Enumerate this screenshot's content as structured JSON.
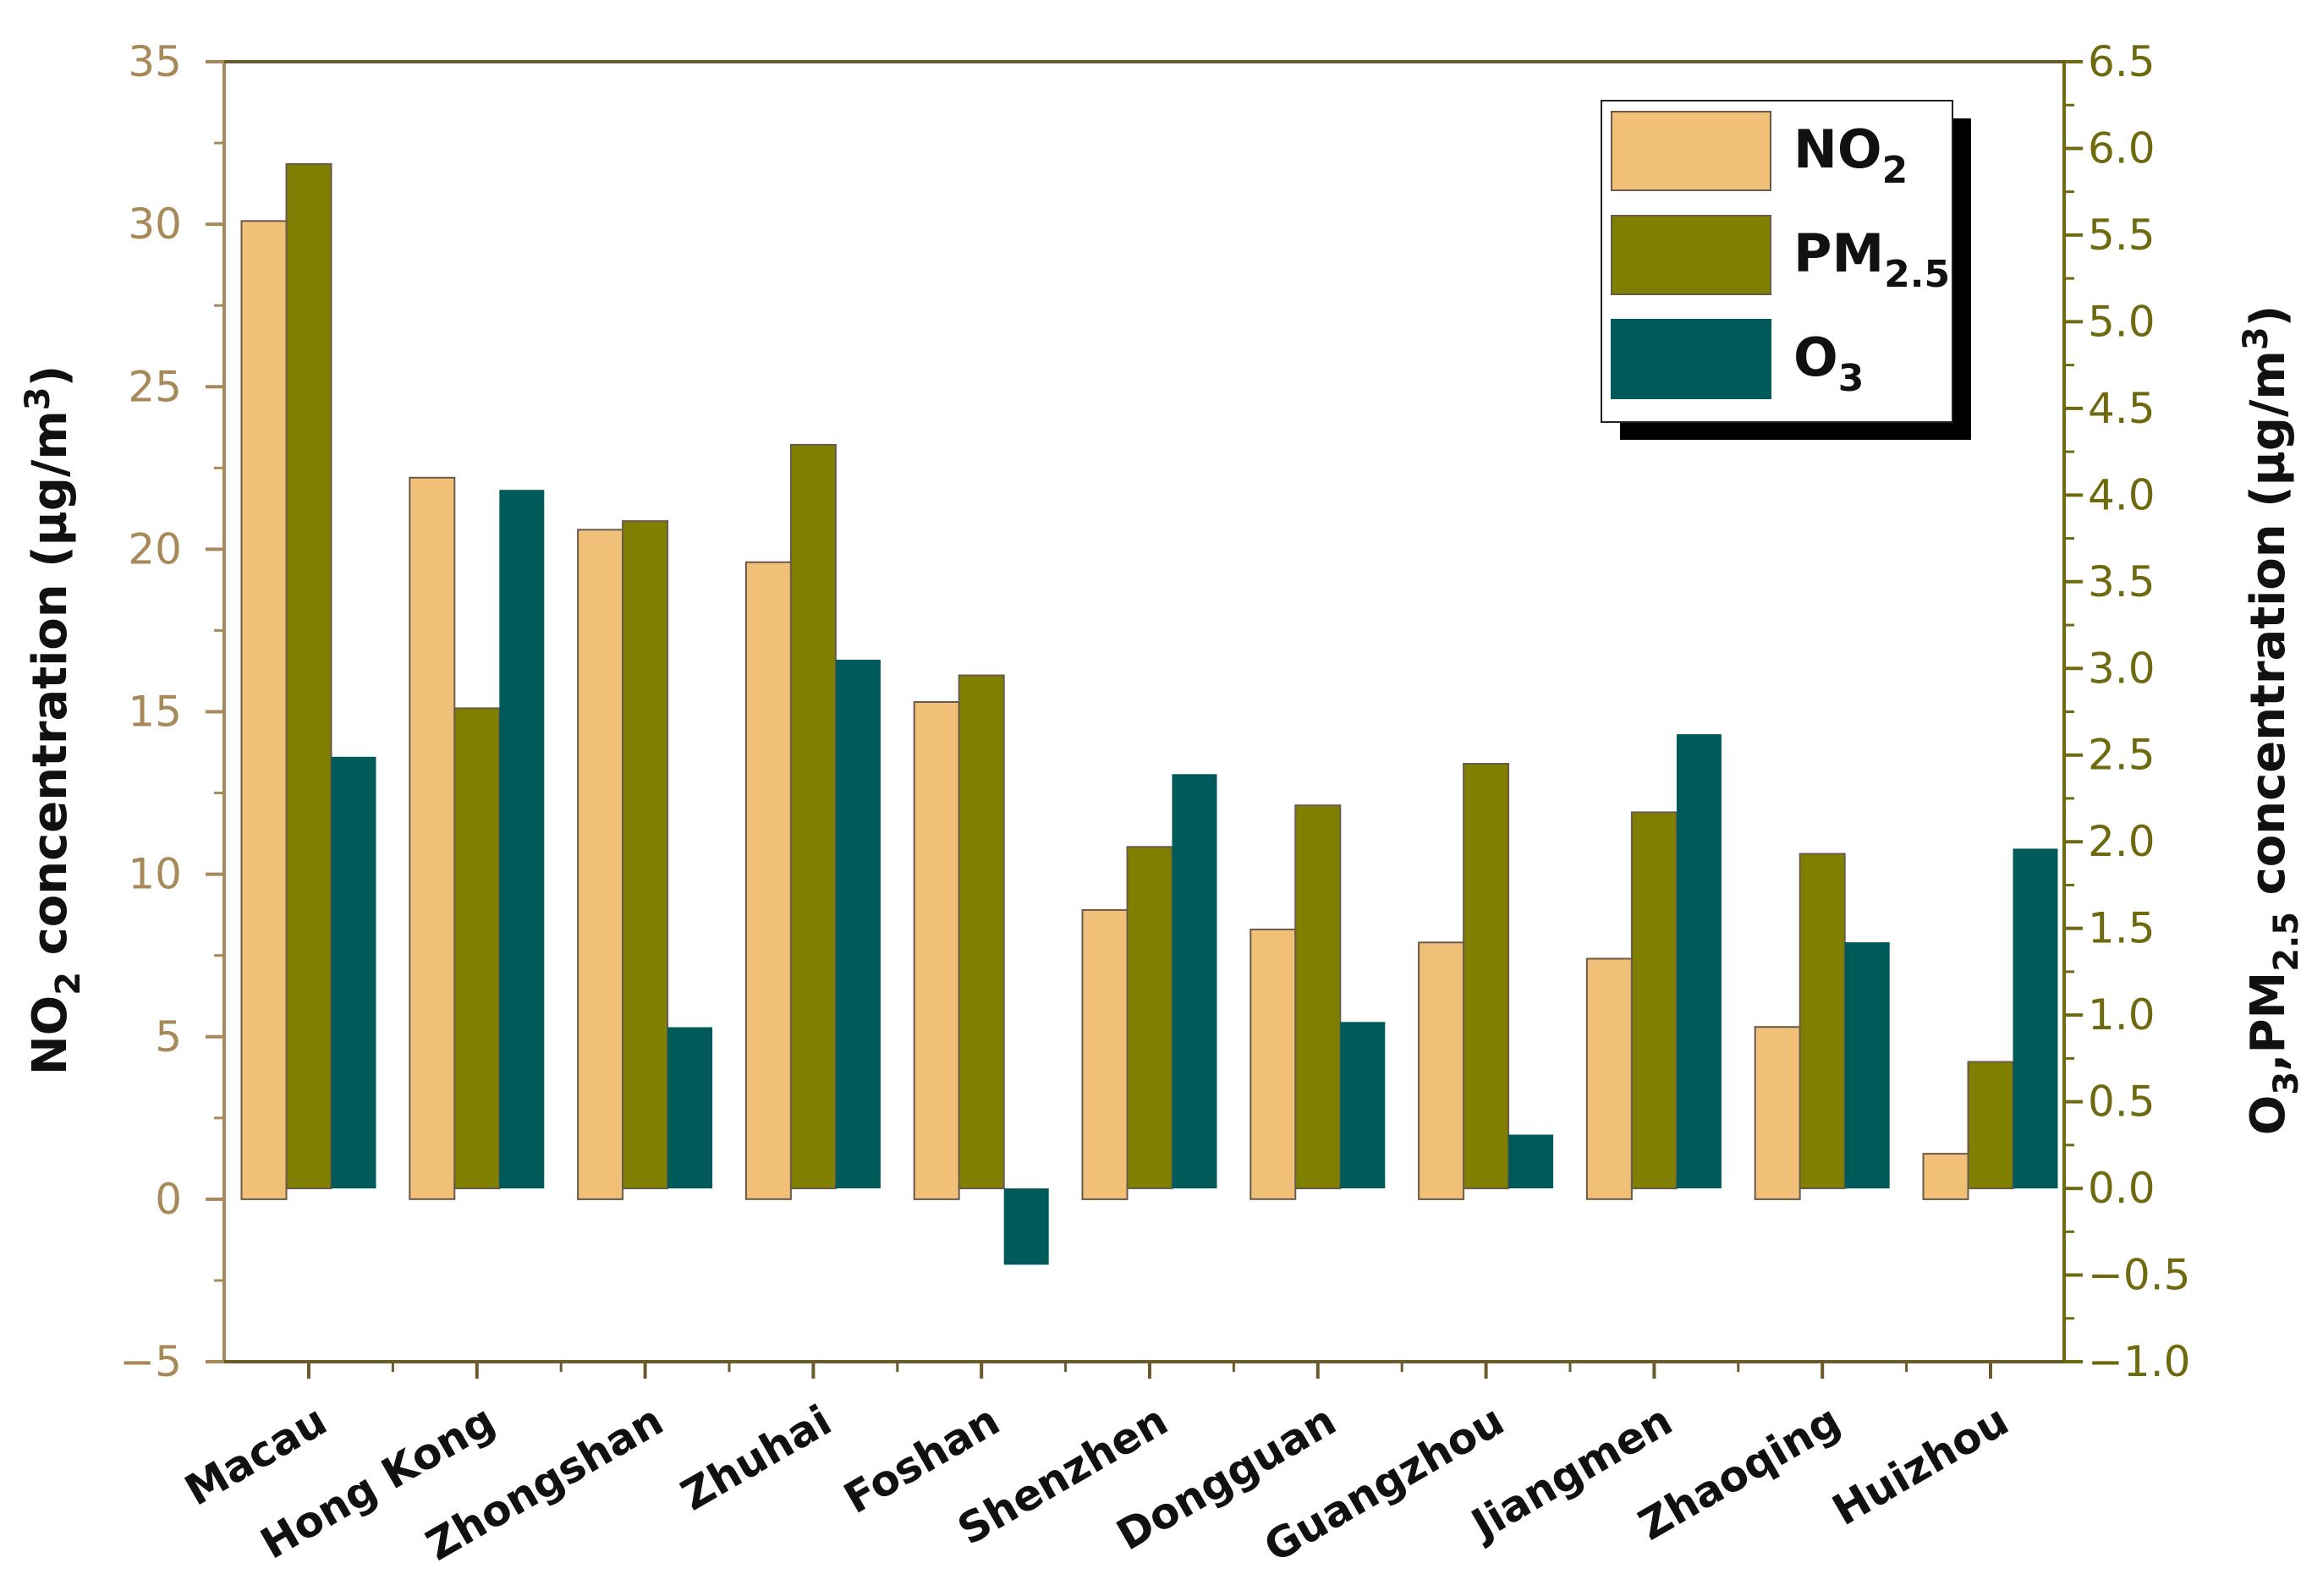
{
  "chart_data": {
    "type": "bar",
    "categories": [
      "Macau",
      "Hong Kong",
      "Zhongshan",
      "Zhuhai",
      "Foshan",
      "Shenzhen",
      "Dongguan",
      "Guangzhou",
      "Jiangmen",
      "Zhaoqing",
      "Huizhou"
    ],
    "series": [
      {
        "name": "NO2",
        "label_main": "NO",
        "label_sub": "2",
        "axis": "left",
        "color": "#f0c078",
        "values": [
          30.1,
          22.2,
          20.6,
          19.6,
          15.3,
          8.9,
          8.3,
          7.9,
          7.4,
          5.3,
          1.4
        ]
      },
      {
        "name": "PM2.5",
        "label_main": "PM",
        "label_sub": "2.5",
        "axis": "right",
        "color": "#808000",
        "values": [
          5.91,
          2.77,
          3.85,
          4.29,
          2.96,
          1.97,
          2.21,
          2.45,
          2.17,
          1.93,
          0.73
        ]
      },
      {
        "name": "O3",
        "label_main": "O",
        "label_sub": "3",
        "axis": "right",
        "color": "#005a5a",
        "values": [
          2.49,
          4.03,
          0.93,
          3.05,
          -0.44,
          2.39,
          0.96,
          0.31,
          2.62,
          1.42,
          1.96
        ]
      }
    ],
    "left_axis": {
      "title_parts": [
        "NO",
        "2",
        " concentration (µg/m",
        "3",
        ")"
      ],
      "ylim": [
        -5,
        35
      ],
      "ticks": [
        -5,
        0,
        5,
        10,
        15,
        20,
        25,
        30,
        35
      ],
      "tick_labels": [
        "−5",
        "0",
        "5",
        "10",
        "15",
        "20",
        "25",
        "30",
        "35"
      ],
      "color": "#a88a5a"
    },
    "right_axis": {
      "title_parts": [
        "O",
        "3",
        ",PM",
        "2.5",
        " concentration (µg/m",
        "3",
        ")"
      ],
      "ylim": [
        -1.0,
        6.5
      ],
      "ticks": [
        -1.0,
        -0.5,
        0.0,
        0.5,
        1.0,
        1.5,
        2.0,
        2.5,
        3.0,
        3.5,
        4.0,
        4.5,
        5.0,
        5.5,
        6.0,
        6.5
      ],
      "tick_labels": [
        "−1.0",
        "−0.5",
        "0.0",
        "0.5",
        "1.0",
        "1.5",
        "2.0",
        "2.5",
        "3.0",
        "3.5",
        "4.0",
        "4.5",
        "5.0",
        "5.5",
        "6.0",
        "6.5"
      ],
      "color": "#6f6a10"
    },
    "legend_position": "top-right",
    "grid": false
  }
}
